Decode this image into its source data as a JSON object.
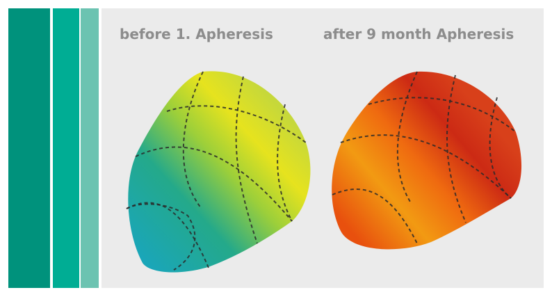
{
  "panels": [
    {
      "label": "before 1. Apheresis"
    },
    {
      "label": "after 9 month Apheresis"
    }
  ]
}
